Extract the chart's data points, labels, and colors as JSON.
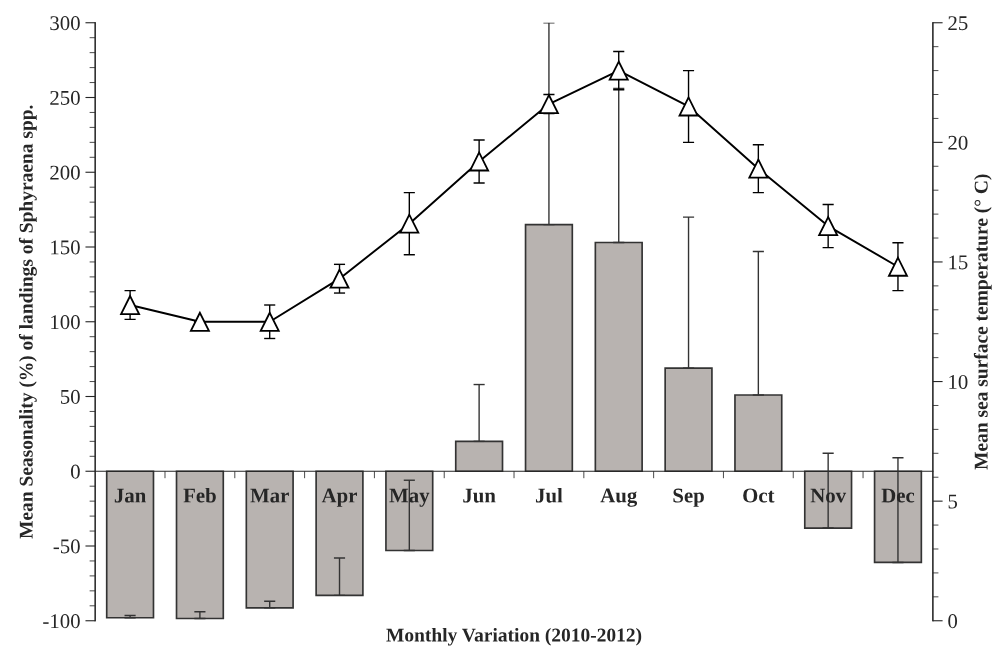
{
  "chart_data": {
    "type": "bar",
    "xlabel": "Monthly Variation (2010-2012)",
    "ylabel": "Mean Seasonality (%) of landings of Sphyraena spp.",
    "y2label": "Mean sea surface temperature (° C)",
    "categories": [
      "Jan",
      "Feb",
      "Mar",
      "Apr",
      "May",
      "Jun",
      "Jul",
      "Aug",
      "Sep",
      "Oct",
      "Nov",
      "Dec"
    ],
    "series": [
      {
        "color": "#b8b3b0",
        "values": [
          -98,
          -98.5,
          -91.4,
          -83,
          -53,
          20,
          165,
          153,
          69,
          51,
          -38,
          -61
        ],
        "errors": [
          [
            -98,
            -96.5
          ],
          [
            -98.5,
            -94
          ],
          [
            -91.4,
            -87
          ],
          [
            -83,
            -58
          ],
          [
            -53,
            -6
          ],
          [
            20,
            58
          ],
          [
            165,
            300
          ],
          [
            153,
            256
          ],
          [
            69,
            170
          ],
          [
            51,
            147
          ],
          [
            -38,
            12
          ],
          [
            -61,
            9
          ]
        ]
      },
      {
        "type": "line",
        "axis": "y2",
        "color": "#000000",
        "marker": "triangle",
        "line_style": "solid",
        "values": [
          13.2,
          12.5,
          12.5,
          14.3,
          16.6,
          19.2,
          21.6,
          23.0,
          21.5,
          18.9,
          16.5,
          14.8
        ],
        "errors": [
          0.6,
          0,
          0.7,
          0.6,
          1.3,
          0.9,
          0.4,
          0.8,
          1.5,
          1.0,
          0.9,
          1.0
        ]
      }
    ],
    "ylim": [
      -100,
      300
    ],
    "yticks": [
      -100,
      -50,
      0,
      50,
      100,
      150,
      200,
      250,
      300
    ],
    "y2lim": [
      0,
      25
    ],
    "y2ticks": [
      0,
      5,
      10,
      15,
      20,
      25
    ],
    "grid": false,
    "legend": false
  }
}
